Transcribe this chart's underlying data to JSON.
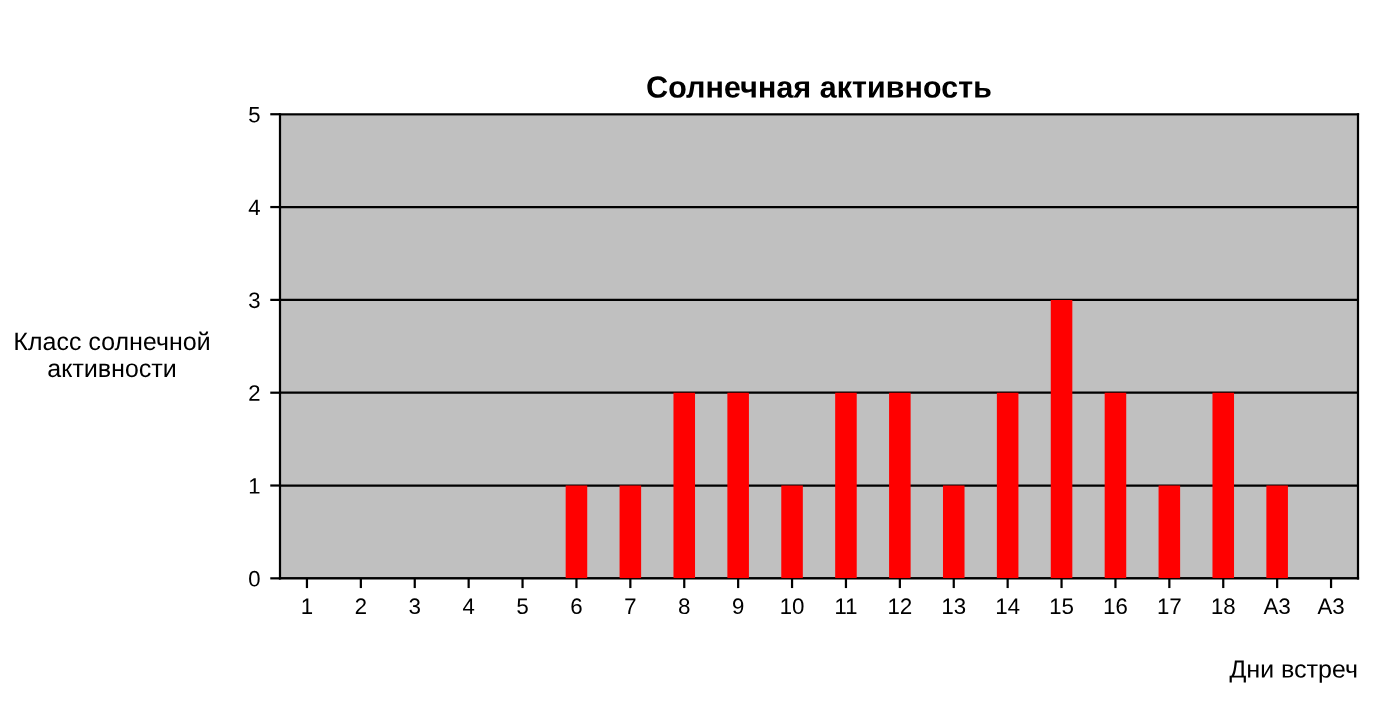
{
  "chart_data": {
    "type": "bar",
    "title": "Солнечная активность",
    "xlabel": "Дни встреч",
    "ylabel": "Класс солнечной\nактивности",
    "categories": [
      "1",
      "2",
      "3",
      "4",
      "5",
      "6",
      "7",
      "8",
      "9",
      "10",
      "11",
      "12",
      "13",
      "14",
      "15",
      "16",
      "17",
      "18",
      "А3",
      "А3"
    ],
    "values": [
      0,
      0,
      0,
      0,
      0,
      1,
      1,
      2,
      2,
      1,
      2,
      2,
      1,
      2,
      3,
      2,
      1,
      2,
      1,
      0
    ],
    "color": "#ff0000",
    "ylim": [
      0,
      5
    ],
    "yticks": [
      0,
      1,
      2,
      3,
      4,
      5
    ],
    "grid": "y"
  }
}
